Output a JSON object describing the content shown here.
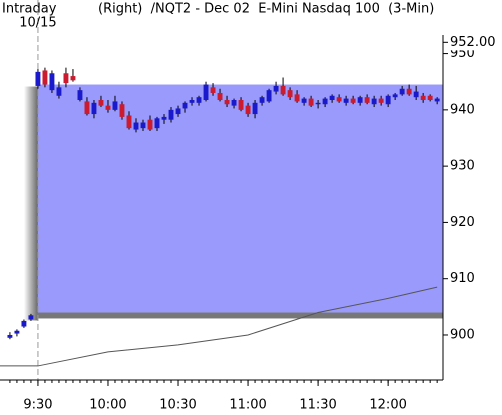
{
  "chart_data": {
    "type": "candlestick",
    "label": "Intraday",
    "title": "(Right)  /NQT2 - Dec 02  E-Mini Nasdaq 100  (3-Min)",
    "up_color": "#1a1acc",
    "down_color": "#cc1a2e",
    "x": [
      558,
      561,
      564,
      567,
      570,
      573,
      576,
      579,
      582,
      585,
      588,
      591,
      594,
      597,
      600,
      603,
      606,
      609,
      612,
      615,
      618,
      621,
      624,
      627,
      630,
      633,
      636,
      639,
      642,
      645,
      648,
      651,
      654,
      657,
      660,
      663,
      666,
      669,
      672,
      675,
      678,
      681,
      684,
      687,
      690,
      693,
      696,
      699,
      702,
      705,
      708,
      711,
      714,
      717,
      720,
      723,
      726,
      729,
      732,
      735,
      738,
      741
    ],
    "open": [
      899.5,
      900.25,
      901.5,
      902.75,
      944.25,
      947,
      943.5,
      942.5,
      946.5,
      946,
      941.75,
      941.5,
      939.25,
      941.75,
      940.75,
      940,
      941,
      939,
      936.5,
      936.75,
      938.25,
      936.75,
      938.25,
      938.25,
      939.25,
      940.25,
      941.25,
      941.25,
      941.75,
      944,
      943,
      941.75,
      940.75,
      941.75,
      940.75,
      939.25,
      941.25,
      941.5,
      943.25,
      944.25,
      943.5,
      942.75,
      941.25,
      942,
      941,
      941,
      941.75,
      942.25,
      941.25,
      942,
      941.25,
      942.25,
      941,
      942,
      941,
      942.25,
      942.75,
      943.75,
      942.25,
      942.5,
      942.5,
      941.5
    ],
    "high": [
      900.5,
      901,
      902.75,
      903.75,
      947.25,
      947.5,
      947,
      945,
      947.5,
      947.25,
      944,
      942.25,
      941.75,
      942.5,
      941.75,
      942.5,
      941.5,
      939.75,
      938.5,
      938.25,
      939,
      938.75,
      939.25,
      940.5,
      940.75,
      941.5,
      942.25,
      942.5,
      945,
      944.75,
      943.75,
      942.5,
      942,
      942.25,
      941.25,
      941.75,
      942.5,
      943.75,
      945,
      945.75,
      944,
      943.5,
      942.25,
      942.5,
      941.75,
      942.25,
      942.75,
      942.75,
      942.5,
      942.5,
      942.5,
      942.75,
      942.5,
      942.5,
      942.75,
      943,
      944.25,
      944.5,
      944.25,
      943,
      942.75,
      942.25
    ],
    "low": [
      899.25,
      899.75,
      901.25,
      902.5,
      943.75,
      944,
      943,
      942,
      944,
      945,
      941.5,
      939,
      938.5,
      940.5,
      939.5,
      939.75,
      938.25,
      936.5,
      936,
      936.25,
      936.25,
      936.25,
      937.5,
      937.75,
      938.75,
      939.5,
      940.75,
      940.75,
      941.5,
      942.5,
      941.5,
      940.5,
      940.25,
      939.75,
      938.75,
      938.5,
      940.75,
      941.25,
      942.75,
      942.5,
      941.75,
      941.25,
      940.75,
      940.5,
      940.25,
      940.5,
      941.25,
      941.25,
      940.75,
      941,
      940.75,
      941,
      940.5,
      940.75,
      940.5,
      941.75,
      942.5,
      942.5,
      941.75,
      941.25,
      941.5,
      941
    ],
    "close": [
      900,
      900.75,
      902.5,
      903.5,
      946.75,
      944.5,
      946.5,
      944,
      944.75,
      945.25,
      943.5,
      939.25,
      941.25,
      940.75,
      940,
      941.5,
      938.75,
      936.75,
      937.75,
      937.75,
      936.5,
      938.5,
      938.75,
      940,
      940.25,
      941.25,
      941.75,
      942.25,
      944.5,
      943,
      941.75,
      941,
      941.75,
      940,
      939.25,
      941.25,
      942.25,
      943.5,
      944.25,
      942.75,
      942.25,
      941.5,
      942,
      940.75,
      941.25,
      942,
      942.5,
      941.5,
      942,
      941.25,
      942.25,
      941.25,
      942,
      941.25,
      942.5,
      942.75,
      943.75,
      942.75,
      943.25,
      941.75,
      941.75,
      942
    ],
    "indicator": {
      "color": "#555555",
      "x": [
        553.75,
        570,
        600,
        630,
        660,
        690,
        720,
        741
      ],
      "values": [
        894.5,
        894.5,
        897,
        898.25,
        900,
        904,
        906.5,
        908.5
      ]
    },
    "band": {
      "from_x": 570,
      "low": 904,
      "high": 944.5,
      "color": "#9a9afc"
    },
    "date_marker": {
      "value": 570,
      "label": "10/15"
    },
    "price_marker": {
      "value": 952,
      "label": "952.00"
    },
    "xlim": [
      553.75,
      743.5
    ],
    "ylim": [
      892,
      953.3
    ],
    "xticks": [
      {
        "value": 570,
        "label": "9:30"
      },
      {
        "value": 600,
        "label": "10:00"
      },
      {
        "value": 630,
        "label": "10:30"
      },
      {
        "value": 660,
        "label": "11:00"
      },
      {
        "value": 690,
        "label": "11:30"
      },
      {
        "value": 720,
        "label": "12:00"
      }
    ],
    "yticks": [
      900,
      910,
      920,
      930,
      940,
      950
    ]
  }
}
